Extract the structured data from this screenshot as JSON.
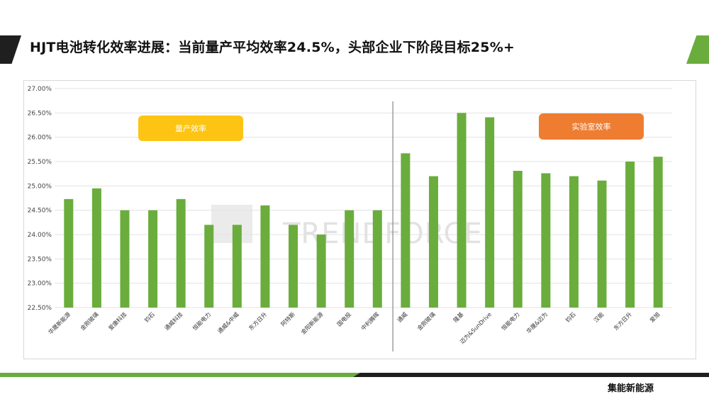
{
  "page": {
    "title": "HJT电池转化效率进展：当前量产平均效率24.5%，头部企业下阶段目标25%+",
    "source_label": "集能新能源",
    "watermark_text": "TRENDFORCE"
  },
  "colors": {
    "bar": "#6aad3d",
    "mass_production_badge": "#fdc414",
    "lab_badge": "#ee7d31",
    "accent_green": "#6aad3d",
    "dark": "#1f1f1f"
  },
  "chart_data": {
    "type": "bar",
    "ylim": [
      22.5,
      27.0
    ],
    "yticks": [
      "22.50%",
      "23.00%",
      "23.50%",
      "24.00%",
      "24.50%",
      "25.00%",
      "25.50%",
      "26.00%",
      "26.50%",
      "27.00%"
    ],
    "ytick_values": [
      22.5,
      23.0,
      23.5,
      24.0,
      24.5,
      25.0,
      25.5,
      26.0,
      26.5,
      27.0
    ],
    "grid": true,
    "groups": [
      {
        "label": "量产效率",
        "categories": [
          "华晟新能源",
          "金刚玻璃",
          "爱康科技",
          "钧石",
          "通威科技",
          "恒能电力",
          "通威&中威",
          "东方日升",
          "阿特斯",
          "金阳新能源",
          "国电投",
          "中利腾晖"
        ],
        "values": [
          24.73,
          24.95,
          24.5,
          24.5,
          24.73,
          24.2,
          24.2,
          24.6,
          24.2,
          24.0,
          24.5,
          24.5
        ]
      },
      {
        "label": "实验室效率",
        "categories": [
          "通威",
          "金刚玻璃",
          "隆基",
          "迈为&SunDrive",
          "恒能电力",
          "华晟&迈为",
          "钧石",
          "汉能",
          "东方日升",
          "爱旭"
        ],
        "values": [
          25.67,
          25.2,
          26.5,
          26.41,
          25.31,
          25.26,
          25.2,
          25.11,
          25.5,
          25.6
        ]
      }
    ]
  }
}
